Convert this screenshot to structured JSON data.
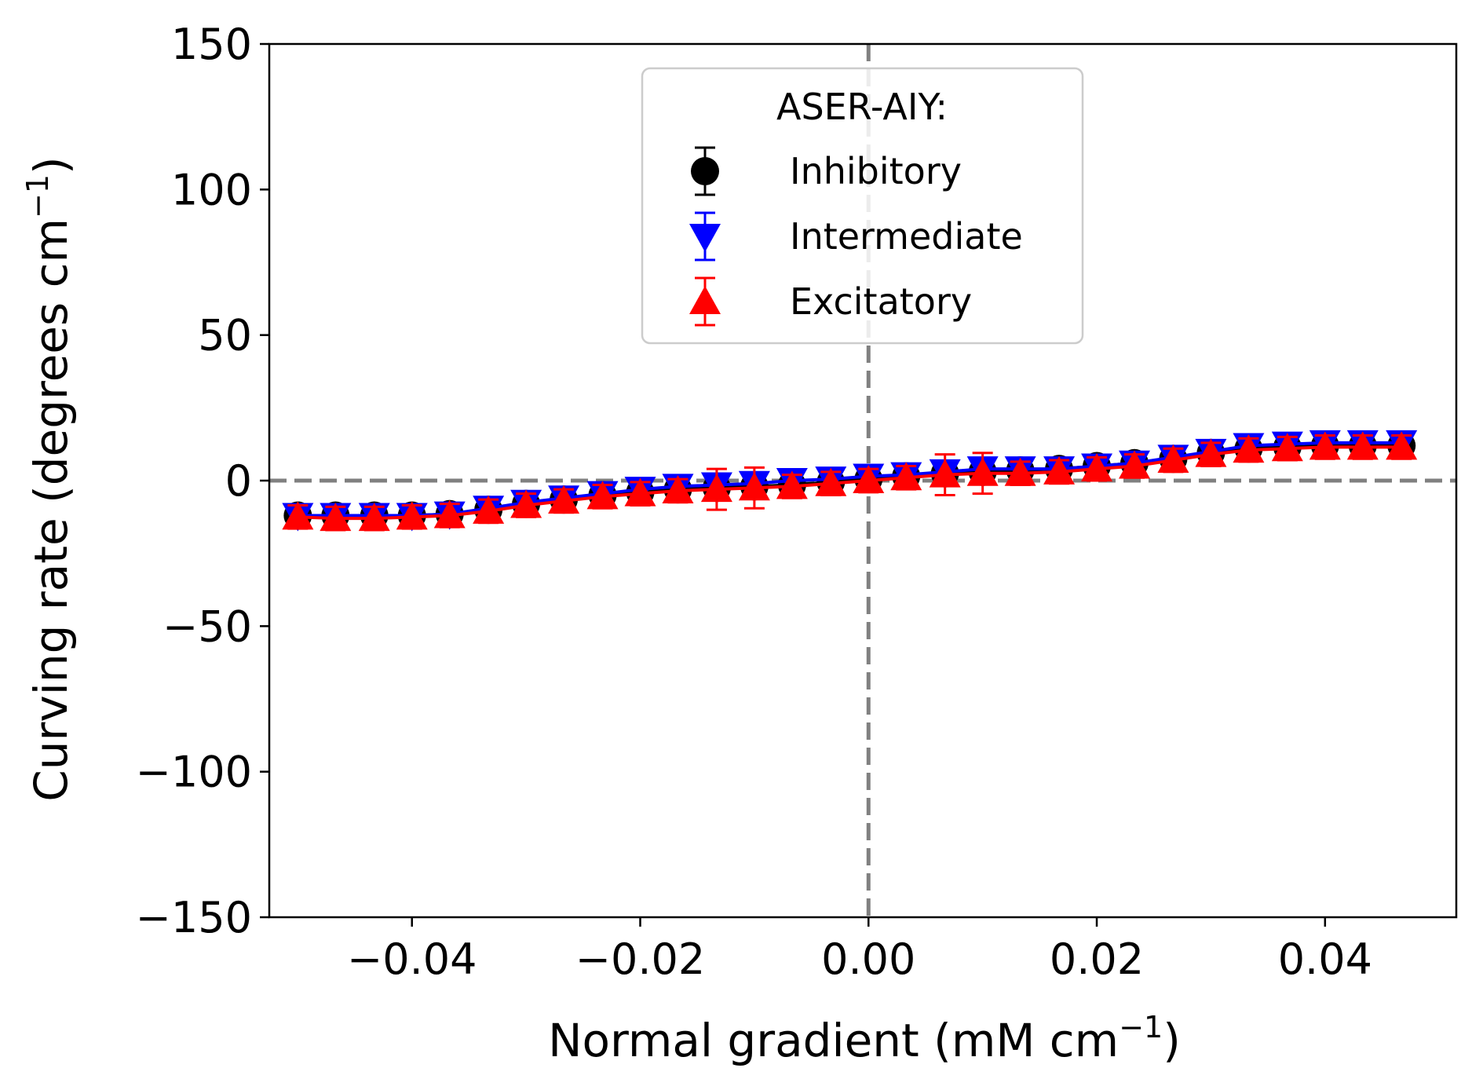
{
  "chart_data": {
    "type": "scatter",
    "title": "",
    "xlabel": "Normal gradient (mM cm",
    "xlabel_sup": "−1",
    "xlabel_end": ")",
    "ylabel": "Curving rate (degrees cm",
    "ylabel_sup": "−1",
    "ylabel_end": ")",
    "xlim": [
      -0.0525,
      0.0515
    ],
    "ylim": [
      -150,
      150
    ],
    "xticks": [
      -0.04,
      -0.02,
      0.0,
      0.02,
      0.04
    ],
    "xtick_labels": [
      "−0.04",
      "−0.02",
      "0.00",
      "0.02",
      "0.04"
    ],
    "yticks": [
      150,
      100,
      50,
      0,
      -50,
      -100,
      -150
    ],
    "ytick_labels": [
      "150",
      "100",
      "50",
      "0",
      "−50",
      "−100",
      "−150"
    ],
    "grid": false,
    "reference_lines": {
      "x": 0,
      "y": 0,
      "color": "#808080",
      "style": "dashed"
    },
    "legend": {
      "title": "ASER-AIY:",
      "placement": "top-center"
    },
    "x": [
      -0.05,
      -0.0467,
      -0.0433,
      -0.04,
      -0.0367,
      -0.0333,
      -0.03,
      -0.0267,
      -0.0233,
      -0.02,
      -0.0167,
      -0.0133,
      -0.01,
      -0.0067,
      -0.0033,
      0.0,
      0.0033,
      0.0067,
      0.01,
      0.0133,
      0.0167,
      0.02,
      0.0233,
      0.0267,
      0.03,
      0.0333,
      0.0367,
      0.04,
      0.0433,
      0.0467
    ],
    "series": [
      {
        "name": "Inhibitory",
        "color": "#000000",
        "marker": "circle",
        "values": [
          -12,
          -12,
          -12,
          -12,
          -11.5,
          -10,
          -8,
          -6.5,
          -5,
          -4,
          -3,
          -2.5,
          -2,
          -1.5,
          -0.5,
          0.5,
          1.5,
          2.5,
          3,
          3.5,
          4,
          5,
          6,
          7.5,
          9.5,
          11,
          11.5,
          12,
          12,
          12
        ],
        "errors": [
          3,
          3,
          3,
          3,
          3,
          3,
          3,
          3,
          3,
          3,
          3,
          3,
          3,
          3,
          3,
          3,
          3,
          3,
          3,
          3,
          3,
          3,
          3,
          3,
          3,
          3,
          3,
          3,
          3,
          3
        ]
      },
      {
        "name": "Intermediate",
        "color": "#0000ff",
        "marker": "triangle-down",
        "values": [
          -12,
          -12,
          -12,
          -12,
          -11.5,
          -9.5,
          -7.5,
          -6,
          -4.5,
          -3,
          -2,
          -1.5,
          -1,
          0,
          0.5,
          1.5,
          2,
          3,
          4,
          4,
          4,
          5,
          6,
          8,
          10,
          12,
          12.5,
          13,
          13,
          13
        ],
        "errors": [
          3,
          3,
          3,
          3,
          3,
          3,
          3,
          3,
          3,
          3,
          3,
          3,
          3,
          3,
          3,
          3,
          3,
          3,
          3,
          3,
          3,
          3,
          3,
          3,
          3,
          3,
          3,
          3,
          3,
          3
        ]
      },
      {
        "name": "Excitatory",
        "color": "#ff0000",
        "marker": "triangle-up",
        "values": [
          -12.5,
          -13,
          -13,
          -12.5,
          -12,
          -10.5,
          -8.5,
          -7,
          -5.5,
          -4.5,
          -3.5,
          -3,
          -2.5,
          -2,
          -1,
          0,
          1,
          2,
          2.5,
          2.5,
          3,
          4,
          5,
          7,
          9,
          10.5,
          11,
          11.5,
          11.5,
          11.5
        ],
        "errors": [
          4,
          4,
          4,
          4,
          4,
          4,
          4,
          4,
          4,
          4,
          4,
          7,
          7,
          4,
          4,
          4,
          4,
          7,
          7,
          4,
          4,
          4,
          4,
          4,
          4,
          4,
          4,
          4,
          4,
          4
        ]
      }
    ]
  }
}
